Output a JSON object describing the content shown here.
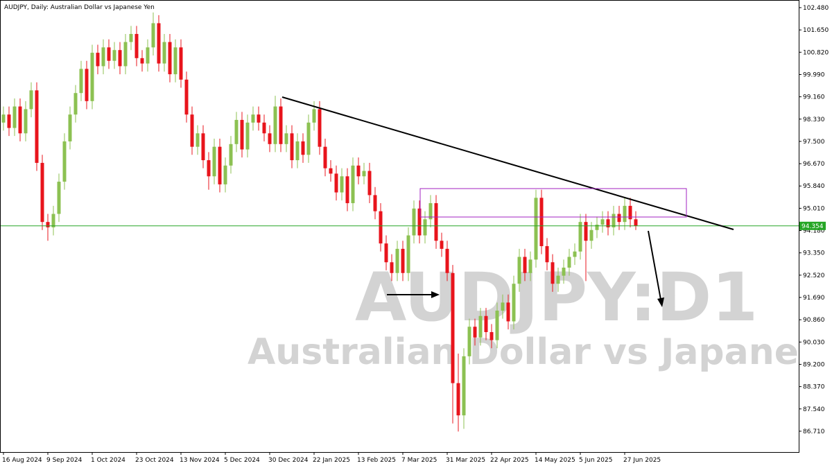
{
  "chart_data": {
    "type": "candlestick",
    "title": "AUDJPY, Daily:  Australian Dollar vs Japanese Yen",
    "watermark_symbol": "AUDJPY:D1",
    "watermark_name": "Australian Dollar vs Japanese Yen",
    "up_color": "#8cc152",
    "down_color": "#e8141c",
    "open": [
      98.2,
      98.5,
      98.0,
      98.8,
      97.8,
      98.7,
      99.4,
      96.7,
      94.5,
      94.3,
      94.8,
      96.0,
      97.5,
      98.5,
      99.3,
      100.2,
      99.0,
      100.8,
      100.3,
      101.0,
      100.5,
      100.9,
      100.3,
      101.2,
      101.5,
      100.6,
      100.4,
      101.0,
      101.9,
      100.4,
      101.2,
      100.0,
      101.0,
      99.8,
      98.5,
      97.3,
      97.8,
      96.8,
      96.2,
      97.3,
      95.9,
      96.6,
      97.4,
      98.3,
      97.2,
      98.2,
      98.5,
      98.2,
      97.8,
      97.4,
      98.8,
      97.4,
      97.8,
      96.8,
      97.5,
      97.0,
      98.2,
      98.7,
      97.3,
      96.5,
      96.3,
      95.6,
      96.2,
      95.2,
      96.6,
      96.2,
      96.4,
      95.5,
      94.9,
      93.7,
      93.0,
      92.6,
      93.5,
      92.6,
      94.0,
      95.0,
      94.0,
      94.6,
      95.2,
      93.8,
      93.5,
      92.6,
      88.5,
      87.3,
      89.5,
      90.6,
      90.2,
      91.0,
      90.4,
      90.1,
      91.2,
      91.5,
      90.8,
      92.2,
      93.2,
      92.6,
      93.1,
      95.4,
      93.6,
      93.0,
      92.2,
      92.5,
      92.8,
      93.2,
      93.4,
      94.5,
      93.8,
      94.2,
      94.4,
      94.6,
      94.3,
      94.8,
      94.5,
      95.1,
      94.6
    ],
    "high": [
      98.8,
      98.8,
      99.1,
      99.1,
      99.0,
      99.7,
      99.7,
      97.0,
      94.8,
      95.1,
      96.3,
      97.8,
      98.8,
      99.6,
      100.5,
      100.5,
      101.1,
      101.1,
      101.3,
      101.3,
      101.2,
      101.2,
      101.5,
      101.8,
      101.8,
      100.9,
      101.3,
      102.3,
      102.2,
      101.5,
      101.5,
      101.3,
      101.3,
      100.1,
      98.8,
      98.1,
      98.1,
      97.1,
      97.6,
      97.6,
      96.9,
      97.7,
      98.6,
      98.6,
      98.5,
      98.8,
      98.8,
      98.5,
      98.1,
      99.2,
      99.1,
      98.1,
      98.1,
      97.8,
      97.8,
      98.5,
      99.0,
      99.0,
      97.6,
      96.8,
      96.6,
      96.5,
      96.5,
      96.9,
      96.9,
      96.7,
      96.7,
      95.8,
      95.2,
      94.0,
      93.3,
      93.8,
      93.8,
      94.3,
      95.3,
      95.3,
      94.9,
      95.5,
      95.5,
      94.1,
      93.8,
      92.9,
      89.6,
      89.8,
      90.9,
      90.9,
      91.3,
      91.3,
      90.7,
      91.5,
      91.8,
      91.8,
      92.5,
      93.5,
      93.5,
      93.4,
      95.7,
      95.7,
      93.9,
      93.3,
      92.8,
      93.1,
      93.5,
      93.7,
      94.8,
      94.8,
      94.5,
      94.7,
      94.9,
      94.9,
      95.1,
      95.1,
      95.4,
      95.4,
      94.9
    ],
    "low": [
      97.9,
      97.7,
      97.7,
      97.5,
      97.5,
      98.4,
      96.4,
      94.2,
      93.8,
      94.0,
      94.5,
      95.7,
      97.2,
      98.2,
      99.0,
      98.7,
      98.7,
      100.0,
      100.0,
      100.2,
      100.2,
      100.0,
      100.0,
      100.9,
      100.3,
      100.1,
      100.1,
      100.7,
      100.1,
      100.1,
      99.7,
      99.7,
      99.5,
      98.2,
      97.0,
      97.0,
      96.5,
      95.7,
      95.9,
      95.6,
      95.6,
      96.3,
      97.1,
      96.9,
      96.9,
      97.9,
      97.9,
      97.5,
      97.1,
      97.1,
      97.1,
      97.1,
      96.5,
      96.5,
      96.7,
      96.7,
      97.9,
      97.0,
      96.2,
      96.0,
      95.3,
      95.3,
      94.9,
      94.9,
      95.9,
      95.9,
      95.2,
      94.6,
      93.4,
      92.7,
      92.3,
      92.3,
      92.3,
      92.3,
      93.7,
      93.7,
      93.7,
      94.3,
      93.5,
      93.2,
      92.3,
      87.0,
      86.7,
      86.8,
      89.2,
      89.9,
      89.9,
      90.1,
      89.8,
      89.8,
      90.9,
      90.5,
      90.5,
      91.9,
      92.3,
      92.3,
      92.8,
      93.3,
      92.7,
      91.9,
      91.9,
      92.2,
      92.5,
      92.9,
      93.1,
      92.3,
      93.5,
      93.9,
      94.1,
      94.0,
      94.0,
      94.2,
      94.2,
      94.3,
      94.2
    ],
    "close": [
      98.5,
      98.0,
      98.8,
      97.8,
      98.7,
      99.4,
      96.7,
      94.5,
      94.3,
      94.8,
      96.0,
      97.5,
      98.5,
      99.3,
      100.2,
      99.0,
      100.8,
      100.3,
      101.0,
      100.5,
      100.9,
      100.3,
      101.2,
      101.5,
      100.6,
      100.4,
      101.0,
      101.9,
      100.4,
      101.2,
      100.0,
      101.0,
      99.8,
      98.5,
      97.3,
      97.8,
      96.8,
      96.2,
      97.3,
      95.9,
      96.6,
      97.4,
      98.3,
      97.2,
      98.2,
      98.5,
      98.2,
      97.8,
      97.4,
      98.8,
      97.4,
      97.8,
      96.8,
      97.5,
      97.0,
      98.2,
      98.7,
      97.3,
      96.5,
      96.3,
      95.6,
      96.2,
      95.2,
      96.6,
      96.2,
      96.4,
      95.5,
      94.9,
      93.7,
      93.0,
      92.6,
      93.5,
      92.6,
      94.0,
      95.0,
      94.0,
      94.6,
      95.2,
      93.8,
      93.5,
      92.6,
      88.5,
      87.3,
      89.5,
      90.6,
      90.2,
      91.0,
      90.4,
      90.1,
      91.2,
      91.5,
      90.8,
      92.2,
      93.2,
      92.6,
      93.1,
      95.4,
      93.6,
      93.0,
      92.2,
      92.5,
      92.8,
      93.2,
      93.4,
      94.5,
      93.8,
      94.2,
      94.4,
      94.6,
      94.3,
      94.8,
      94.5,
      95.1,
      94.6,
      94.35
    ],
    "last_price": {
      "value": 94.354,
      "label": "94.354"
    },
    "last_price_color": "#26a626",
    "xlim": [
      -0.625,
      143.375
    ],
    "xticks": [
      {
        "value": 0,
        "label": "16 Aug 2024"
      },
      {
        "value": 8,
        "label": "9 Sep 2024"
      },
      {
        "value": 16,
        "label": "1 Oct 2024"
      },
      {
        "value": 24,
        "label": "23 Oct 2024"
      },
      {
        "value": 32,
        "label": "13 Nov 2024"
      },
      {
        "value": 40,
        "label": "5 Dec 2024"
      },
      {
        "value": 48,
        "label": "30 Dec 2024"
      },
      {
        "value": 56,
        "label": "22 Jan 2025"
      },
      {
        "value": 64,
        "label": "13 Feb 2025"
      },
      {
        "value": 72,
        "label": "7 Mar 2025"
      },
      {
        "value": 80,
        "label": "31 Mar 2025"
      },
      {
        "value": 88,
        "label": "22 Apr 2025"
      },
      {
        "value": 96,
        "label": "14 May 2025"
      },
      {
        "value": 104,
        "label": "5 Jun 2025"
      },
      {
        "value": 112,
        "label": "27 Jun 2025"
      }
    ],
    "ylim": [
      85.934,
      102.764
    ],
    "yticks": [
      {
        "value": 102.48,
        "label": "102.480"
      },
      {
        "value": 101.65,
        "label": "101.650"
      },
      {
        "value": 100.82,
        "label": "100.820"
      },
      {
        "value": 99.99,
        "label": "99.990"
      },
      {
        "value": 99.16,
        "label": "99.160"
      },
      {
        "value": 98.33,
        "label": "98.330"
      },
      {
        "value": 97.5,
        "label": "97.500"
      },
      {
        "value": 96.67,
        "label": "96.670"
      },
      {
        "value": 95.84,
        "label": "95.840"
      },
      {
        "value": 95.01,
        "label": "95.010"
      },
      {
        "value": 94.18,
        "label": "94.180"
      },
      {
        "value": 93.35,
        "label": "93.350"
      },
      {
        "value": 92.52,
        "label": "92.520"
      },
      {
        "value": 91.69,
        "label": "91.690"
      },
      {
        "value": 90.86,
        "label": "90.860"
      },
      {
        "value": 90.03,
        "label": "90.030"
      },
      {
        "value": 89.2,
        "label": "89.200"
      },
      {
        "value": 88.37,
        "label": "88.370"
      },
      {
        "value": 87.54,
        "label": "87.540"
      },
      {
        "value": 86.71,
        "label": "86.710"
      }
    ]
  }
}
